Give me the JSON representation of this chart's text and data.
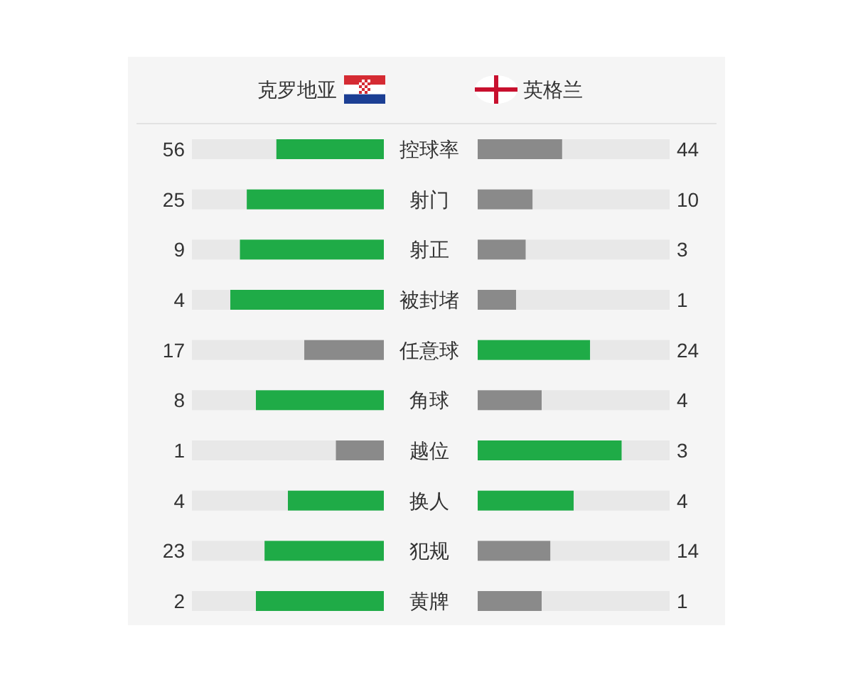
{
  "chart_data": [
    {
      "type": "other",
      "title": "克罗地亚",
      "categories": [
        "控球率",
        "射门",
        "射正",
        "被封堵",
        "任意球",
        "角球",
        "越位",
        "换人",
        "犯规",
        "黄牌"
      ],
      "values": [
        56,
        25,
        9,
        4,
        17,
        8,
        1,
        4,
        23,
        2
      ],
      "colors": [
        "#1fab47",
        "#1fab47",
        "#1fab47",
        "#1fab47",
        "#8a8a8a",
        "#1fab47",
        "#8a8a8a",
        "#1fab47",
        "#1fab47",
        "#1fab47"
      ],
      "data_labels": true
    },
    {
      "type": "other",
      "title": "英格兰",
      "categories": [
        null,
        null,
        null,
        null,
        null,
        null,
        null,
        null,
        null,
        null
      ],
      "values": [
        44,
        10,
        3,
        1,
        24,
        4,
        3,
        4,
        14,
        1
      ],
      "colors": [
        "#8a8a8a",
        "#8a8a8a",
        "#8a8a8a",
        "#8a8a8a",
        "#1fab47",
        "#8a8a8a",
        "#1fab47",
        "#1fab47",
        "#8a8a8a",
        "#8a8a8a"
      ],
      "data_labels": true
    }
  ]
}
